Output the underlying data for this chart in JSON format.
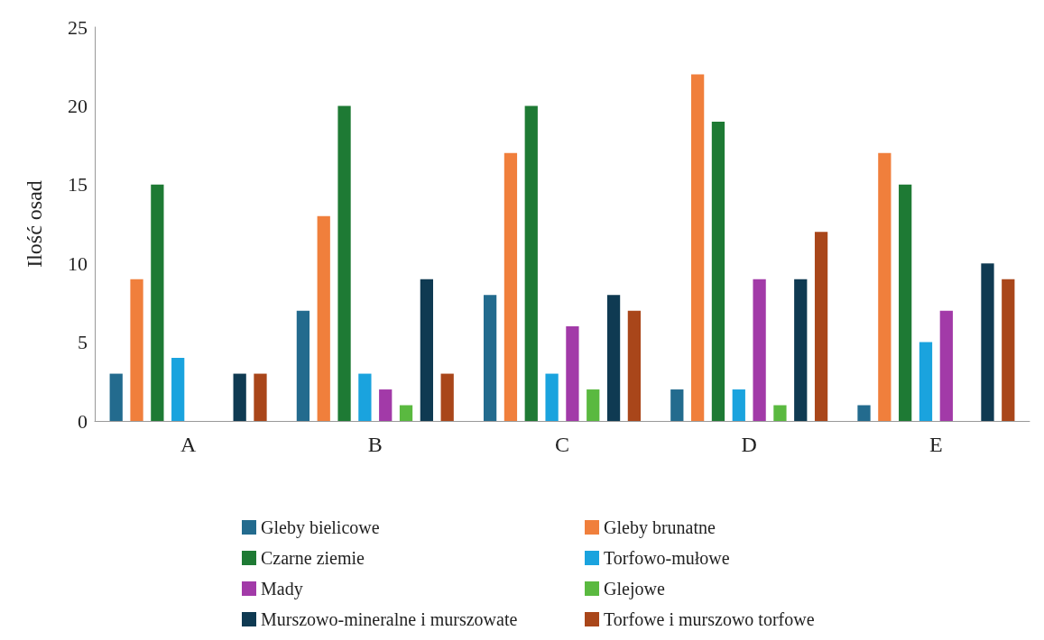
{
  "chart_data": {
    "type": "bar",
    "ylabel": "Ilość osad",
    "categories": [
      "A",
      "B",
      "C",
      "D",
      "E"
    ],
    "series": [
      {
        "name": "Gleby bielicowe",
        "color": "#236b8e",
        "values": [
          3,
          7,
          8,
          2,
          1
        ]
      },
      {
        "name": "Gleby brunatne",
        "color": "#f07f3c",
        "values": [
          9,
          13,
          17,
          22,
          17
        ]
      },
      {
        "name": "Czarne ziemie",
        "color": "#1e7a34",
        "values": [
          15,
          20,
          20,
          19,
          15
        ]
      },
      {
        "name": "Torfowo-mułowe",
        "color": "#1aa3de",
        "values": [
          4,
          3,
          3,
          2,
          5
        ]
      },
      {
        "name": "Mady",
        "color": "#a23aa8",
        "values": [
          0,
          2,
          6,
          9,
          7
        ]
      },
      {
        "name": "Glejowe",
        "color": "#5ab940",
        "values": [
          0,
          1,
          2,
          1,
          0
        ]
      },
      {
        "name": "Murszowo-mineralne i murszowate",
        "color": "#0f3a52",
        "values": [
          3,
          9,
          8,
          9,
          10
        ]
      },
      {
        "name": "Torfowe i murszowo torfowe",
        "color": "#a9461a",
        "values": [
          3,
          3,
          7,
          12,
          9
        ]
      }
    ],
    "ylim": [
      0,
      25
    ],
    "yticks": [
      0,
      5,
      10,
      15,
      20,
      25
    ],
    "grid": false,
    "legend": "bottom"
  }
}
